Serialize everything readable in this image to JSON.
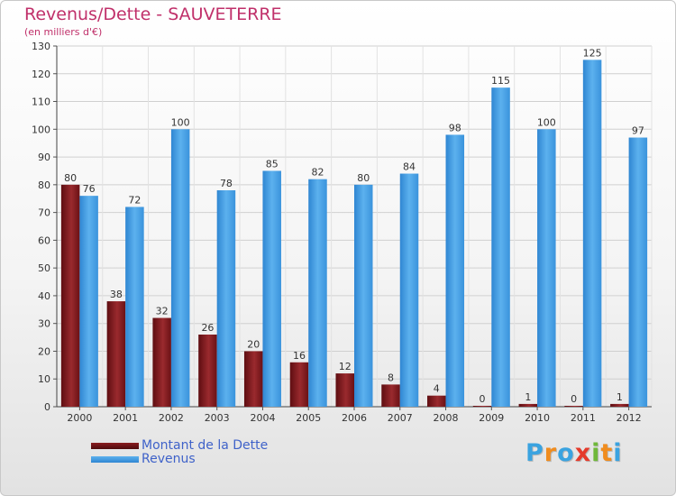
{
  "chart_data": {
    "type": "bar",
    "title": "Revenus/Dette - SAUVETERRE",
    "subtitle": "(en milliers d'€)",
    "categories": [
      "2000",
      "2001",
      "2002",
      "2003",
      "2004",
      "2005",
      "2006",
      "2007",
      "2008",
      "2009",
      "2010",
      "2011",
      "2012"
    ],
    "series": [
      {
        "name": "Montant de la Dette",
        "values": [
          80,
          38,
          32,
          26,
          20,
          16,
          12,
          8,
          4,
          0,
          1,
          0,
          1
        ],
        "color": "#7a1418"
      },
      {
        "name": "Revenus",
        "values": [
          76,
          72,
          100,
          78,
          85,
          82,
          80,
          84,
          98,
          115,
          100,
          125,
          97
        ],
        "color": "#3b95dc"
      }
    ],
    "ylim": [
      0,
      130
    ],
    "yticks": [
      0,
      10,
      20,
      30,
      40,
      50,
      60,
      70,
      80,
      90,
      100,
      110,
      120,
      130
    ],
    "grid": true,
    "legend_position": "bottom-left"
  },
  "brand": {
    "letters": [
      "P",
      "r",
      "o",
      "x",
      "i",
      "t",
      "i"
    ],
    "colors": [
      "#3aa3e0",
      "#f08c1e",
      "#3aa3e0",
      "#e53a2b",
      "#6fb83a",
      "#f08c1e",
      "#3aa3e0"
    ]
  }
}
